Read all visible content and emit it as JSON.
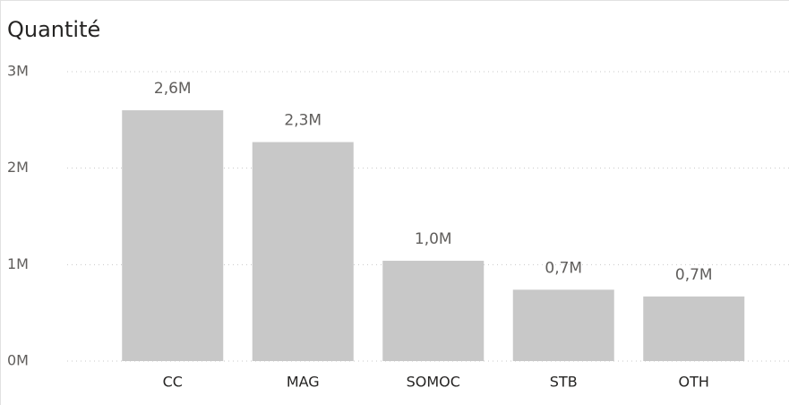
{
  "chart_data": {
    "type": "bar",
    "title": "Quantité",
    "categories": [
      "CC",
      "MAG",
      "SOMOC",
      "STB",
      "OTH"
    ],
    "values": [
      2600000,
      2270000,
      1040000,
      740000,
      670000
    ],
    "value_labels": [
      "2,6M",
      "2,3M",
      "1,0M",
      "0,7M",
      "0,7M"
    ],
    "color": "#c8c8c8",
    "ylim": [
      0,
      3000000
    ],
    "yticks": [
      {
        "value": 0,
        "label": "0M"
      },
      {
        "value": 1000000,
        "label": "1M"
      },
      {
        "value": 2000000,
        "label": "2M"
      },
      {
        "value": 3000000,
        "label": "3M"
      }
    ],
    "grid": true
  }
}
